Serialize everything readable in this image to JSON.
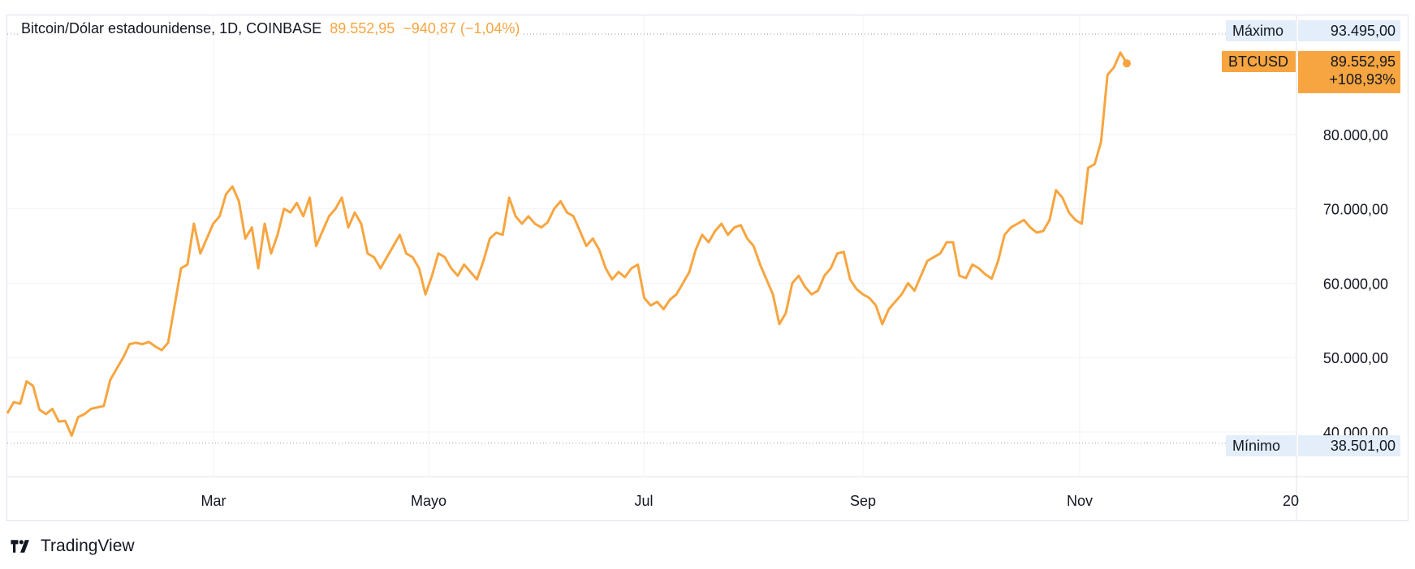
{
  "legend": {
    "symbol_text": "Bitcoin/Dólar estadounidense, 1D, COINBASE",
    "last_price": "89.552,95",
    "change": "−940,87 (−1,04%)"
  },
  "markers": {
    "max_label": "Máximo",
    "max_value": "93.495,00",
    "ticker": "BTCUSD",
    "last_value": "89.552,95",
    "last_change_pct": "+108,93%",
    "min_label": "Mínimo",
    "min_value": "38.501,00"
  },
  "brand": {
    "name": "TradingView"
  },
  "colors": {
    "line": "#f7a540",
    "grid": "#f0f3fa",
    "axis_label_bg": "#e3eefa",
    "text": "#131722"
  },
  "chart_data": {
    "type": "line",
    "series": [
      {
        "values": [
          42500,
          44000,
          43800,
          46800,
          46200,
          43000,
          42400,
          43100,
          41400,
          41500,
          39500,
          42000,
          42400,
          43100,
          43300,
          43500,
          47000,
          48500,
          50000,
          51800,
          52000,
          51800,
          52100,
          51500,
          51000,
          52000,
          57000,
          62000,
          62500,
          68000,
          64000,
          66000,
          68000,
          69000,
          72000,
          73000,
          71000,
          66000,
          67500,
          62000,
          68000,
          64000,
          66500,
          70000,
          69500,
          70800,
          69000,
          71500,
          65000,
          67000,
          69000,
          70000,
          71500,
          67500,
          69500,
          68000,
          64000,
          63500,
          62000,
          63500,
          65000,
          66500,
          64000,
          63500,
          62000,
          58500,
          61000,
          64000,
          63500,
          62000,
          61000,
          62500,
          61500,
          60500,
          63000,
          66000,
          66800,
          66500,
          71500,
          69000,
          68000,
          69000,
          68000,
          67500,
          68200,
          70000,
          71000,
          69500,
          69000,
          67000,
          65000,
          66000,
          64500,
          62000,
          60500,
          61500,
          60800,
          62000,
          62500,
          58000,
          57000,
          57500,
          56500,
          57800,
          58500,
          60000,
          61500,
          64500,
          66500,
          65500,
          67000,
          68000,
          66500,
          67500,
          67800,
          66000,
          65000,
          62500,
          60500,
          58500,
          54500,
          56000,
          60000,
          61000,
          59500,
          58500,
          59000,
          61000,
          62000,
          64000,
          64200,
          60500,
          59200,
          58500,
          58000,
          57000,
          54500,
          56500,
          57500,
          58500,
          60000,
          59000,
          61000,
          63000,
          63500,
          64000,
          65500,
          65500,
          61000,
          60700,
          62500,
          62000,
          61200,
          60600,
          63000,
          66500,
          67500,
          68000,
          68500,
          67500,
          66800,
          67000,
          68500,
          72500,
          71500,
          69500,
          68500,
          68000,
          75500,
          76000,
          79000,
          88000,
          89000,
          91000,
          89552.95
        ],
        "x_start": "2024-01-01",
        "x_step_days": 1.8
      }
    ],
    "x_ticks": [
      "Mar",
      "Mayo",
      "Jul",
      "Sep",
      "Nov",
      "20"
    ],
    "y_ticks": [
      "40.000,00",
      "50.000,00",
      "60.000,00",
      "70.000,00",
      "80.000,00"
    ],
    "ylim": [
      34000,
      96000
    ],
    "grid": true,
    "max": 93495.0,
    "min": 38501.0
  }
}
